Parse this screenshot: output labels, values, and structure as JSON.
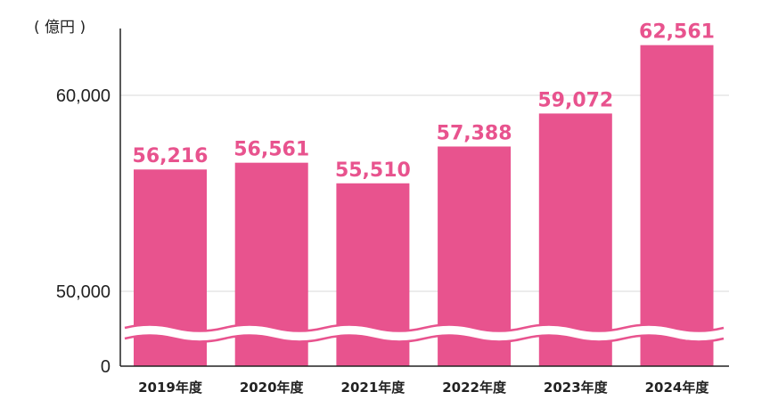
{
  "chart_data": {
    "type": "bar",
    "unit_label": "( 億円 )",
    "categories": [
      "2019年度",
      "2020年度",
      "2021年度",
      "2022年度",
      "2023年度",
      "2024年度"
    ],
    "values": [
      56216,
      56561,
      55510,
      57388,
      59072,
      62561
    ],
    "value_labels": [
      "56,216",
      "56,561",
      "55,510",
      "57,388",
      "59,072",
      "62,561"
    ],
    "yticks": [
      {
        "value": 0,
        "label": "0"
      },
      {
        "value": 50000,
        "label": "50,000"
      },
      {
        "value": 60000,
        "label": "60,000"
      }
    ],
    "axis_break": true,
    "grid": true,
    "bar_color": "#e8538e",
    "value_label_color": "#e8538e"
  }
}
